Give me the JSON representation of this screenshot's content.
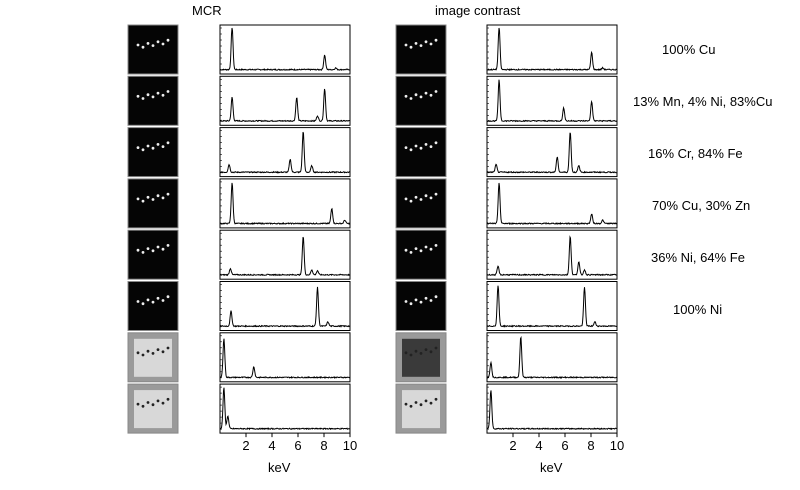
{
  "headers": {
    "left": "MCR",
    "right": "image contrast"
  },
  "x_axis_label": "keV",
  "x_ticks": [
    "2",
    "4",
    "6",
    "8",
    "10"
  ],
  "compositions": [
    "100% Cu",
    "13% Mn, 4% Ni, 83%Cu",
    "16% Cr, 84% Fe",
    "70% Cu, 30% Zn",
    "36% Ni, 64% Fe",
    "100% Ni"
  ],
  "chart_data": {
    "type": "line",
    "xlabel": "keV",
    "xlim": [
      0,
      10
    ],
    "x_ticks": [
      2,
      4,
      6,
      8,
      10
    ],
    "panels": [
      {
        "method": "MCR",
        "row": 1,
        "peaks": [
          [
            0.93,
            1.0
          ],
          [
            8.05,
            0.34
          ],
          [
            8.9,
            0.04
          ]
        ]
      },
      {
        "method": "MCR",
        "row": 2,
        "peaks": [
          [
            0.93,
            0.55
          ],
          [
            5.9,
            0.55
          ],
          [
            7.5,
            0.12
          ],
          [
            8.05,
            0.75
          ]
        ]
      },
      {
        "method": "MCR",
        "row": 3,
        "peaks": [
          [
            0.7,
            0.18
          ],
          [
            5.4,
            0.3
          ],
          [
            6.4,
            0.95
          ],
          [
            7.06,
            0.15
          ]
        ]
      },
      {
        "method": "MCR",
        "row": 4,
        "peaks": [
          [
            0.93,
            0.95
          ],
          [
            8.6,
            0.35
          ],
          [
            9.6,
            0.08
          ]
        ]
      },
      {
        "method": "MCR",
        "row": 5,
        "peaks": [
          [
            0.8,
            0.15
          ],
          [
            6.4,
            0.9
          ],
          [
            7.06,
            0.12
          ],
          [
            7.5,
            0.1
          ]
        ]
      },
      {
        "method": "MCR",
        "row": 6,
        "peaks": [
          [
            0.85,
            0.35
          ],
          [
            7.5,
            0.9
          ],
          [
            8.3,
            0.1
          ]
        ]
      },
      {
        "method": "MCR",
        "row": 7,
        "peaks": [
          [
            0.3,
            0.9
          ],
          [
            2.6,
            0.25
          ]
        ]
      },
      {
        "method": "MCR",
        "row": 8,
        "peaks": [
          [
            0.3,
            0.95
          ],
          [
            0.6,
            0.3
          ]
        ]
      },
      {
        "method": "image contrast",
        "row": 1,
        "peaks": [
          [
            0.93,
            1.0
          ],
          [
            8.05,
            0.4
          ],
          [
            8.9,
            0.04
          ]
        ]
      },
      {
        "method": "image contrast",
        "row": 2,
        "peaks": [
          [
            0.93,
            0.95
          ],
          [
            5.9,
            0.3
          ],
          [
            8.05,
            0.45
          ]
        ]
      },
      {
        "method": "image contrast",
        "row": 3,
        "peaks": [
          [
            0.7,
            0.18
          ],
          [
            5.4,
            0.35
          ],
          [
            6.4,
            0.95
          ],
          [
            7.06,
            0.15
          ]
        ]
      },
      {
        "method": "image contrast",
        "row": 4,
        "peaks": [
          [
            0.93,
            0.95
          ],
          [
            8.05,
            0.22
          ],
          [
            8.9,
            0.08
          ]
        ]
      },
      {
        "method": "image contrast",
        "row": 5,
        "peaks": [
          [
            0.85,
            0.2
          ],
          [
            6.4,
            0.9
          ],
          [
            7.06,
            0.3
          ],
          [
            7.5,
            0.12
          ]
        ]
      },
      {
        "method": "image contrast",
        "row": 6,
        "peaks": [
          [
            0.85,
            0.95
          ],
          [
            7.5,
            0.9
          ],
          [
            8.3,
            0.1
          ]
        ]
      },
      {
        "method": "image contrast",
        "row": 7,
        "peaks": [
          [
            0.3,
            0.35
          ],
          [
            2.6,
            0.95
          ]
        ]
      },
      {
        "method": "image contrast",
        "row": 8,
        "peaks": [
          [
            0.3,
            0.9
          ]
        ]
      }
    ]
  }
}
